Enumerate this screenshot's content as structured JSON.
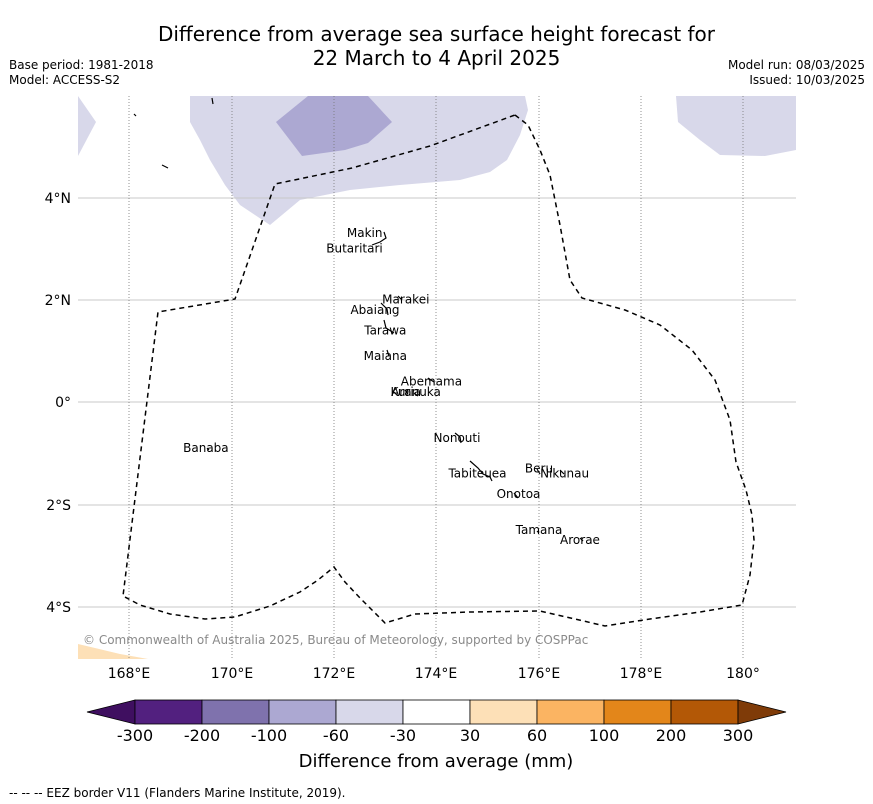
{
  "title_line1": "Difference from average sea surface height forecast for",
  "title_line2": "22 March to 4 April 2025",
  "base_period": "Base period: 1981-2018",
  "model": "Model: ACCESS-S2",
  "model_run": "Model run: 08/03/2025",
  "issued": "Issued: 10/03/2025",
  "lon_ticks": [
    "168°E",
    "170°E",
    "172°E",
    "174°E",
    "176°E",
    "178°E",
    "180°"
  ],
  "lat_ticks": [
    "4°N",
    "2°N",
    "0°",
    "2°S",
    "4°S"
  ],
  "places": [
    {
      "name": "Makin",
      "lon": 172.6,
      "lat": 3.3
    },
    {
      "name": "Butaritari",
      "lon": 172.4,
      "lat": 3.0
    },
    {
      "name": "Marakei",
      "lon": 173.4,
      "lat": 2.0
    },
    {
      "name": "Abaiang",
      "lon": 172.8,
      "lat": 1.8
    },
    {
      "name": "Tarawa",
      "lon": 173.0,
      "lat": 1.4
    },
    {
      "name": "Maiana",
      "lon": 173.0,
      "lat": 0.9
    },
    {
      "name": "Abemama",
      "lon": 173.9,
      "lat": 0.4
    },
    {
      "name": "Kuria",
      "lon": 173.4,
      "lat": 0.2
    },
    {
      "name": "Aranuka",
      "lon": 173.6,
      "lat": 0.2
    },
    {
      "name": "Nonouti",
      "lon": 174.4,
      "lat": -0.7
    },
    {
      "name": "Banaba",
      "lon": 169.5,
      "lat": -0.9
    },
    {
      "name": "Beru",
      "lon": 176.0,
      "lat": -1.3
    },
    {
      "name": "Nikunau",
      "lon": 176.5,
      "lat": -1.4
    },
    {
      "name": "Tabiteuea",
      "lon": 174.8,
      "lat": -1.4
    },
    {
      "name": "Onotoa",
      "lon": 175.6,
      "lat": -1.8
    },
    {
      "name": "Tamana",
      "lon": 176.0,
      "lat": -2.5
    },
    {
      "name": "Arorae",
      "lon": 176.8,
      "lat": -2.7
    }
  ],
  "copyright": "© Commonwealth of Australia 2025, Bureau of Meteorology, supported by COSPPac",
  "colorbar": {
    "ticks": [
      "-300",
      "-200",
      "-100",
      "-60",
      "-30",
      "30",
      "60",
      "100",
      "200",
      "300"
    ],
    "title": "Difference from average (mm)",
    "colors": [
      "#3f0f60",
      "#52207f",
      "#7f72ad",
      "#aca8d2",
      "#d8d8ea",
      "#ffffff",
      "#fde0b7",
      "#fbb462",
      "#e3861a",
      "#b35806",
      "#7f3b08"
    ]
  },
  "footer": "--  --  -- EEZ border V11 (Flanders Marine Institute, 2019)."
}
